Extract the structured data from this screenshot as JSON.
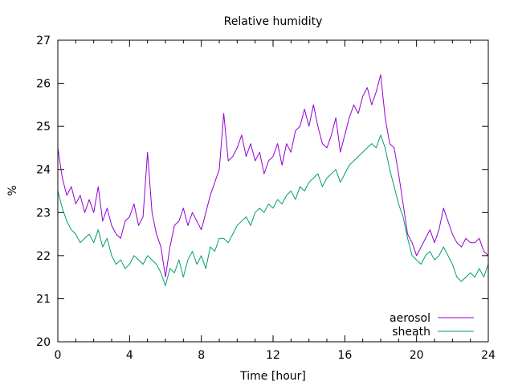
{
  "chart_data": {
    "type": "line",
    "title": "Relative humidity",
    "xlabel": "Time [hour]",
    "ylabel": "%",
    "xlim": [
      0,
      24
    ],
    "ylim": [
      20,
      27
    ],
    "xticks": [
      0,
      4,
      8,
      12,
      16,
      20,
      24
    ],
    "yticks": [
      20,
      21,
      22,
      23,
      24,
      25,
      26,
      27
    ],
    "xminor_step": 1,
    "grid": false,
    "legend_position": "bottom-right",
    "series": [
      {
        "name": "aerosol",
        "color": "#9400d3",
        "points": [
          [
            0,
            24.5
          ],
          [
            0.25,
            23.8
          ],
          [
            0.5,
            23.4
          ],
          [
            0.75,
            23.6
          ],
          [
            1,
            23.2
          ],
          [
            1.25,
            23.4
          ],
          [
            1.5,
            23.0
          ],
          [
            1.75,
            23.3
          ],
          [
            2,
            23.0
          ],
          [
            2.25,
            23.6
          ],
          [
            2.5,
            22.8
          ],
          [
            2.75,
            23.1
          ],
          [
            3,
            22.7
          ],
          [
            3.25,
            22.5
          ],
          [
            3.5,
            22.4
          ],
          [
            3.75,
            22.8
          ],
          [
            4,
            22.9
          ],
          [
            4.25,
            23.2
          ],
          [
            4.5,
            22.7
          ],
          [
            4.75,
            22.9
          ],
          [
            5,
            24.4
          ],
          [
            5.25,
            23.0
          ],
          [
            5.5,
            22.5
          ],
          [
            5.75,
            22.2
          ],
          [
            6,
            21.5
          ],
          [
            6.25,
            22.2
          ],
          [
            6.5,
            22.7
          ],
          [
            6.75,
            22.8
          ],
          [
            7,
            23.1
          ],
          [
            7.25,
            22.7
          ],
          [
            7.5,
            23.0
          ],
          [
            7.75,
            22.8
          ],
          [
            8,
            22.6
          ],
          [
            8.25,
            23.0
          ],
          [
            8.5,
            23.4
          ],
          [
            8.75,
            23.7
          ],
          [
            9,
            24.0
          ],
          [
            9.25,
            25.3
          ],
          [
            9.5,
            24.2
          ],
          [
            9.75,
            24.3
          ],
          [
            10,
            24.5
          ],
          [
            10.25,
            24.8
          ],
          [
            10.5,
            24.3
          ],
          [
            10.75,
            24.6
          ],
          [
            11,
            24.2
          ],
          [
            11.25,
            24.4
          ],
          [
            11.5,
            23.9
          ],
          [
            11.75,
            24.2
          ],
          [
            12,
            24.3
          ],
          [
            12.25,
            24.6
          ],
          [
            12.5,
            24.1
          ],
          [
            12.75,
            24.6
          ],
          [
            13,
            24.4
          ],
          [
            13.25,
            24.9
          ],
          [
            13.5,
            25.0
          ],
          [
            13.75,
            25.4
          ],
          [
            14,
            25.0
          ],
          [
            14.25,
            25.5
          ],
          [
            14.5,
            25.0
          ],
          [
            14.75,
            24.6
          ],
          [
            15,
            24.5
          ],
          [
            15.25,
            24.8
          ],
          [
            15.5,
            25.2
          ],
          [
            15.75,
            24.4
          ],
          [
            16,
            24.8
          ],
          [
            16.25,
            25.2
          ],
          [
            16.5,
            25.5
          ],
          [
            16.75,
            25.3
          ],
          [
            17,
            25.7
          ],
          [
            17.25,
            25.9
          ],
          [
            17.5,
            25.5
          ],
          [
            17.75,
            25.8
          ],
          [
            18,
            26.2
          ],
          [
            18.25,
            25.2
          ],
          [
            18.5,
            24.6
          ],
          [
            18.75,
            24.5
          ],
          [
            19,
            23.9
          ],
          [
            19.25,
            23.2
          ],
          [
            19.5,
            22.5
          ],
          [
            19.75,
            22.3
          ],
          [
            20,
            22.0
          ],
          [
            20.25,
            22.2
          ],
          [
            20.5,
            22.4
          ],
          [
            20.75,
            22.6
          ],
          [
            21,
            22.3
          ],
          [
            21.25,
            22.6
          ],
          [
            21.5,
            23.1
          ],
          [
            21.75,
            22.8
          ],
          [
            22,
            22.5
          ],
          [
            22.25,
            22.3
          ],
          [
            22.5,
            22.2
          ],
          [
            22.75,
            22.4
          ],
          [
            23,
            22.3
          ],
          [
            23.25,
            22.3
          ],
          [
            23.5,
            22.4
          ],
          [
            23.75,
            22.1
          ],
          [
            24,
            22.0
          ]
        ]
      },
      {
        "name": "sheath",
        "color": "#009e73",
        "points": [
          [
            0,
            23.5
          ],
          [
            0.25,
            23.1
          ],
          [
            0.5,
            22.8
          ],
          [
            0.75,
            22.6
          ],
          [
            1,
            22.5
          ],
          [
            1.25,
            22.3
          ],
          [
            1.5,
            22.4
          ],
          [
            1.75,
            22.5
          ],
          [
            2,
            22.3
          ],
          [
            2.25,
            22.6
          ],
          [
            2.5,
            22.2
          ],
          [
            2.75,
            22.4
          ],
          [
            3,
            22.0
          ],
          [
            3.25,
            21.8
          ],
          [
            3.5,
            21.9
          ],
          [
            3.75,
            21.7
          ],
          [
            4,
            21.8
          ],
          [
            4.25,
            22.0
          ],
          [
            4.5,
            21.9
          ],
          [
            4.75,
            21.8
          ],
          [
            5,
            22.0
          ],
          [
            5.25,
            21.9
          ],
          [
            5.5,
            21.8
          ],
          [
            5.75,
            21.6
          ],
          [
            6,
            21.3
          ],
          [
            6.25,
            21.7
          ],
          [
            6.5,
            21.6
          ],
          [
            6.75,
            21.9
          ],
          [
            7,
            21.5
          ],
          [
            7.25,
            21.9
          ],
          [
            7.5,
            22.1
          ],
          [
            7.75,
            21.8
          ],
          [
            8,
            22.0
          ],
          [
            8.25,
            21.7
          ],
          [
            8.5,
            22.2
          ],
          [
            8.75,
            22.1
          ],
          [
            9,
            22.4
          ],
          [
            9.25,
            22.4
          ],
          [
            9.5,
            22.3
          ],
          [
            9.75,
            22.5
          ],
          [
            10,
            22.7
          ],
          [
            10.25,
            22.8
          ],
          [
            10.5,
            22.9
          ],
          [
            10.75,
            22.7
          ],
          [
            11,
            23.0
          ],
          [
            11.25,
            23.1
          ],
          [
            11.5,
            23.0
          ],
          [
            11.75,
            23.2
          ],
          [
            12,
            23.1
          ],
          [
            12.25,
            23.3
          ],
          [
            12.5,
            23.2
          ],
          [
            12.75,
            23.4
          ],
          [
            13,
            23.5
          ],
          [
            13.25,
            23.3
          ],
          [
            13.5,
            23.6
          ],
          [
            13.75,
            23.5
          ],
          [
            14,
            23.7
          ],
          [
            14.25,
            23.8
          ],
          [
            14.5,
            23.9
          ],
          [
            14.75,
            23.6
          ],
          [
            15,
            23.8
          ],
          [
            15.25,
            23.9
          ],
          [
            15.5,
            24.0
          ],
          [
            15.75,
            23.7
          ],
          [
            16,
            23.9
          ],
          [
            16.25,
            24.1
          ],
          [
            16.5,
            24.2
          ],
          [
            16.75,
            24.3
          ],
          [
            17,
            24.4
          ],
          [
            17.25,
            24.5
          ],
          [
            17.5,
            24.6
          ],
          [
            17.75,
            24.5
          ],
          [
            18,
            24.8
          ],
          [
            18.25,
            24.5
          ],
          [
            18.5,
            24.0
          ],
          [
            18.75,
            23.6
          ],
          [
            19,
            23.2
          ],
          [
            19.25,
            22.9
          ],
          [
            19.5,
            22.4
          ],
          [
            19.75,
            22.0
          ],
          [
            20,
            21.9
          ],
          [
            20.25,
            21.8
          ],
          [
            20.5,
            22.0
          ],
          [
            20.75,
            22.1
          ],
          [
            21,
            21.9
          ],
          [
            21.25,
            22.0
          ],
          [
            21.5,
            22.2
          ],
          [
            21.75,
            22.0
          ],
          [
            22,
            21.8
          ],
          [
            22.25,
            21.5
          ],
          [
            22.5,
            21.4
          ],
          [
            22.75,
            21.5
          ],
          [
            23,
            21.6
          ],
          [
            23.25,
            21.5
          ],
          [
            23.5,
            21.7
          ],
          [
            23.75,
            21.5
          ],
          [
            24,
            21.8
          ]
        ]
      }
    ]
  }
}
